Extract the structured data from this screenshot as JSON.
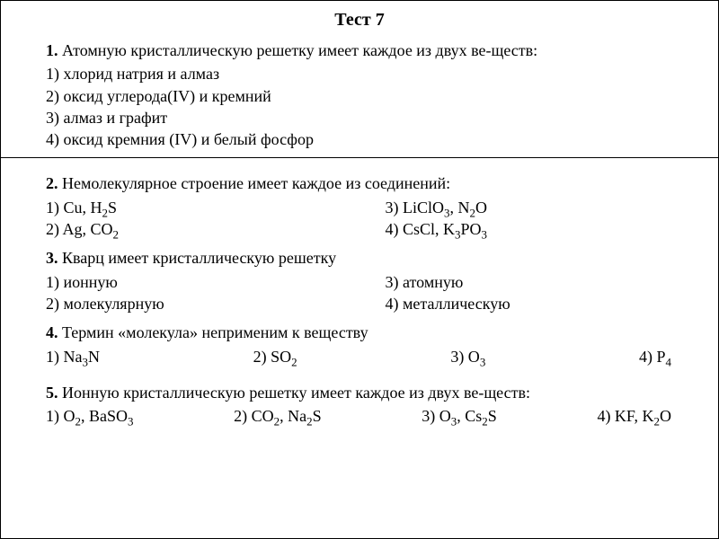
{
  "title": "Тест 7",
  "q1": {
    "num": "1.",
    "text": " Атомную кристаллическую решетку имеет каждое из двух ве-ществ:",
    "opts": [
      "1) хлорид натрия и алмаз",
      "2) оксид углерода(IV) и кремний",
      "3) алмаз и графит",
      "4) оксид кремния (IV) и белый фосфор"
    ]
  },
  "q2": {
    "num": "2.",
    "text": " Немолекулярное строение имеет каждое из соединений:",
    "optsA": [
      "1) Cu, H₂S",
      "2) Ag, CO₂"
    ],
    "optsB": [
      "3) LiClO₃, N₂O",
      "4) CsCl, K₃PO₃"
    ]
  },
  "q3": {
    "num": "3.",
    "text": " Кварц имеет кристаллическую решетку",
    "optsA": [
      "1) ионную",
      "2) молекулярную"
    ],
    "optsB": [
      "3) атомную",
      "4) металлическую"
    ]
  },
  "q4": {
    "num": "4.",
    "text": " Термин «молекула» неприменим к веществу",
    "opts": [
      "1) Na₃N",
      "2) SO₂",
      "3) O₃",
      "4) P₄"
    ]
  },
  "q5": {
    "num": "5.",
    "text": " Ионную кристаллическую решетку имеет каждое из двух ве-ществ:",
    "opts": [
      "1) O₂, BaSO₃",
      "2) CO₂, Na₂S",
      "3) O₃, Cs₂S",
      "4) KF, K₂O"
    ]
  }
}
